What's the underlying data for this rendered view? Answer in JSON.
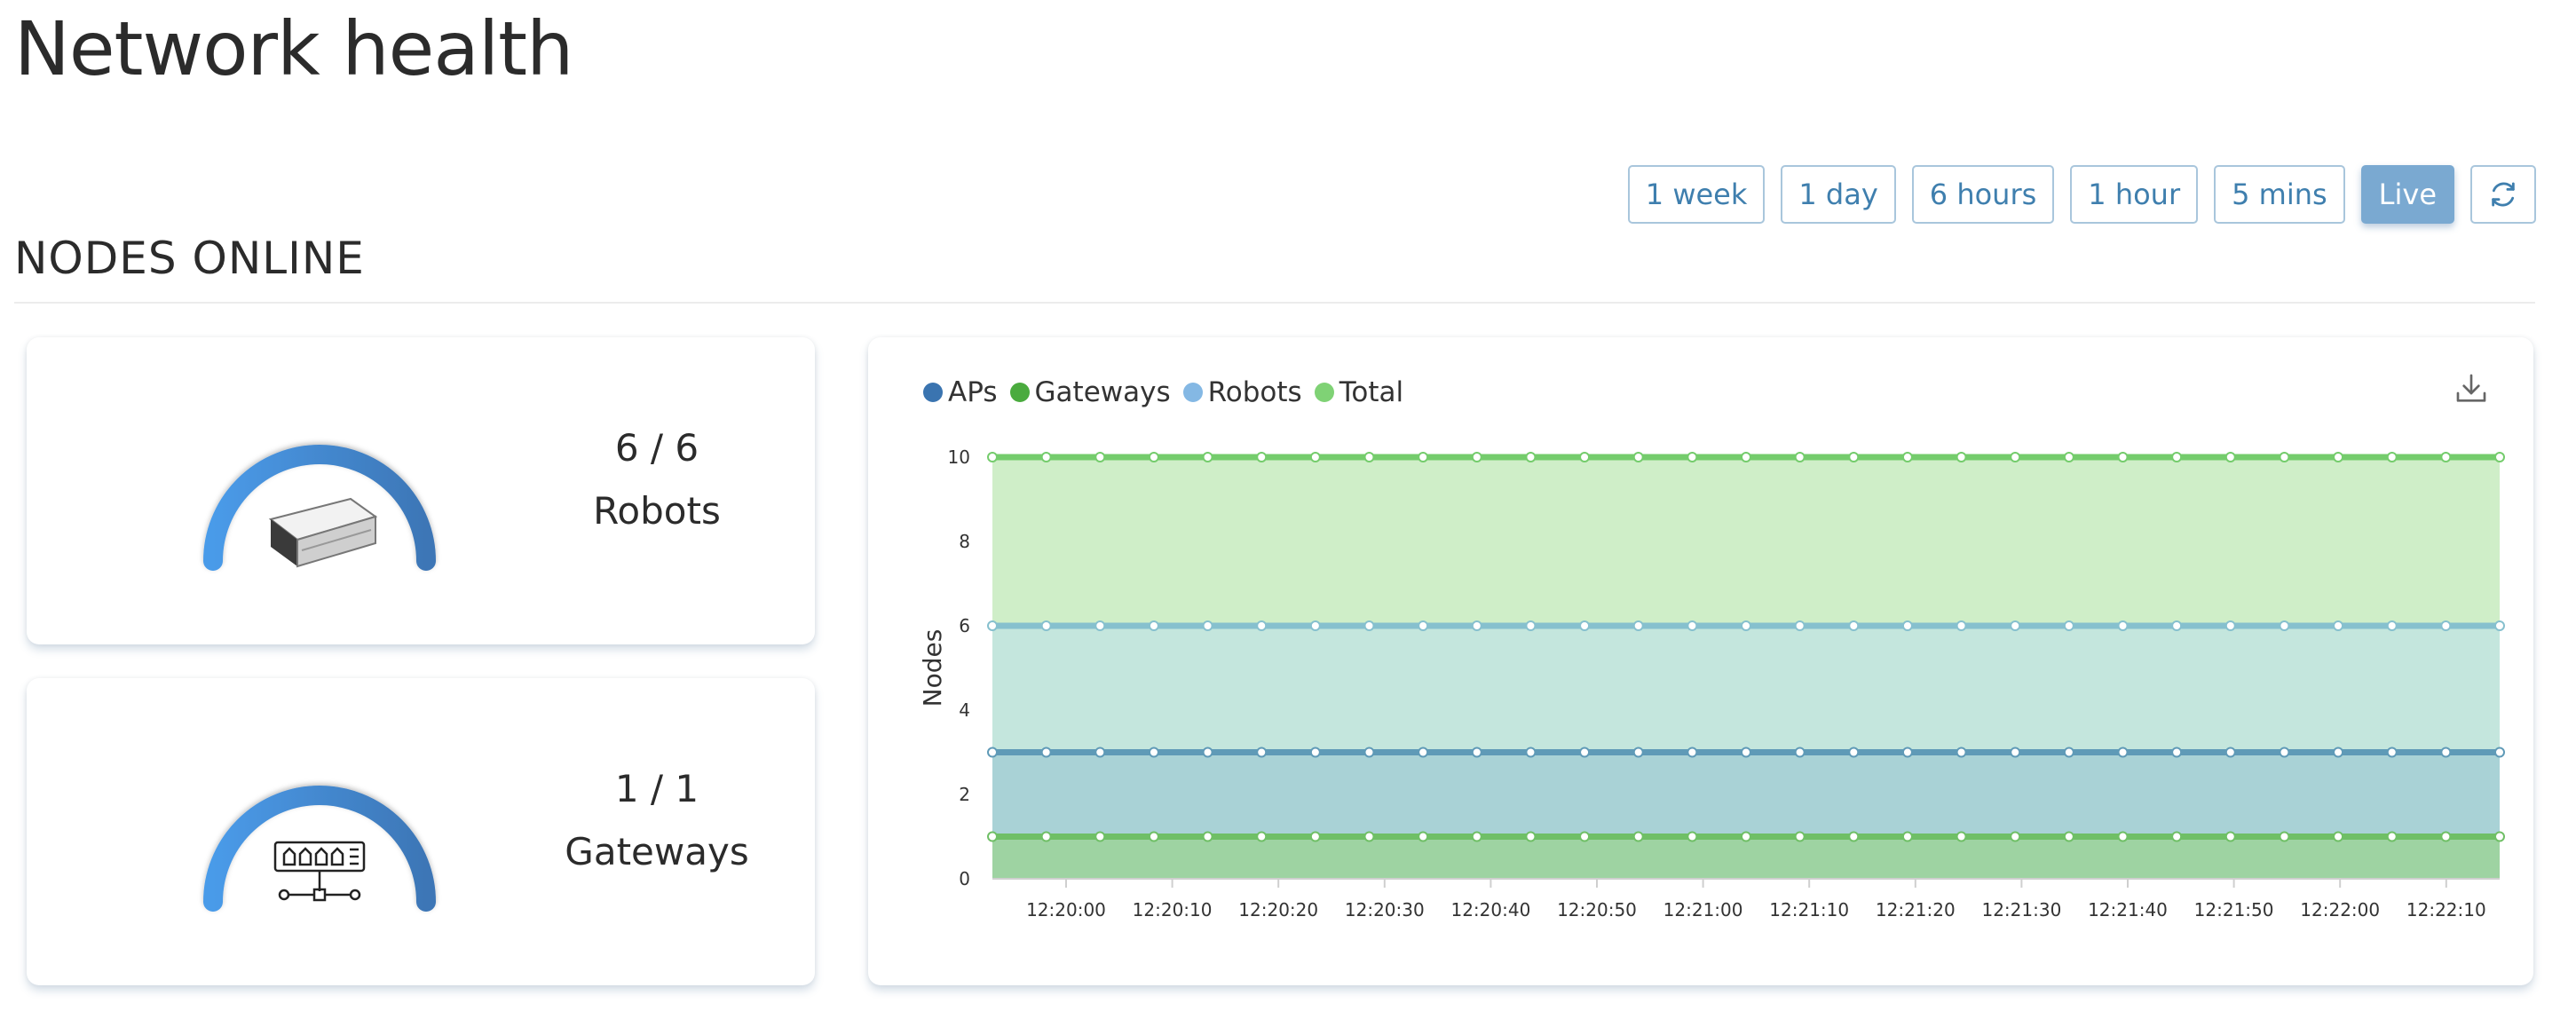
{
  "page": {
    "title": "Network health"
  },
  "time_ranges": [
    {
      "label": "1 week",
      "active": false
    },
    {
      "label": "1 day",
      "active": false
    },
    {
      "label": "6 hours",
      "active": false
    },
    {
      "label": "1 hour",
      "active": false
    },
    {
      "label": "5 mins",
      "active": false
    },
    {
      "label": "Live",
      "active": true
    }
  ],
  "refresh": {
    "icon": "refresh-icon"
  },
  "section": {
    "title": "NODES ONLINE"
  },
  "cards": {
    "robots": {
      "count": "6 / 6",
      "label": "Robots",
      "icon": "robot-icon"
    },
    "gateways": {
      "count": "1 / 1",
      "label": "Gateways",
      "icon": "gateway-icon"
    }
  },
  "chart": {
    "download_icon": "download-icon"
  },
  "chart_data": {
    "type": "area",
    "ylabel": "Nodes",
    "ylim": [
      0,
      10
    ],
    "yticks": [
      0,
      2,
      4,
      6,
      8,
      10
    ],
    "x_tick_labels": [
      "12:20:00",
      "12:20:10",
      "12:20:20",
      "12:20:30",
      "12:20:40",
      "12:20:50",
      "12:21:00",
      "12:21:10",
      "12:21:20",
      "12:21:30",
      "12:21:40",
      "12:21:50",
      "12:22:00",
      "12:22:10"
    ],
    "legend_position": "top-left",
    "grid": true,
    "series": [
      {
        "name": "APs",
        "color": "#3a74b0",
        "value": 3
      },
      {
        "name": "Gateways",
        "color": "#4aab3e",
        "value": 1
      },
      {
        "name": "Robots",
        "color": "#84b8e4",
        "value": 6
      },
      {
        "name": "Total",
        "color": "#7fd275",
        "value": 10
      }
    ]
  }
}
